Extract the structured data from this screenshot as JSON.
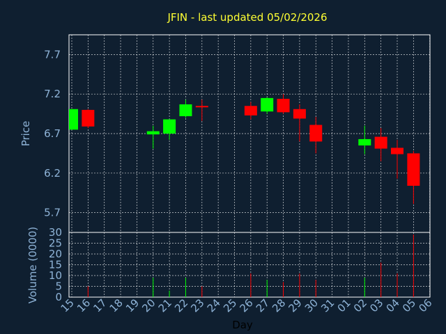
{
  "chart_data": {
    "type": "candlestick",
    "title": "JFIN - last updated 05/02/2026",
    "ylabel_price": "Price",
    "ylabel_volume": "Volume (0000)",
    "xlabel": "Day",
    "x_ticks": [
      "15",
      "16",
      "17",
      "18",
      "19",
      "20",
      "21",
      "22",
      "23",
      "24",
      "25",
      "26",
      "27",
      "28",
      "29",
      "30",
      "31",
      "01",
      "02",
      "03",
      "04",
      "05",
      "06"
    ],
    "price_ticks": [
      "5.7",
      "6.2",
      "6.7",
      "7.2",
      "7.7"
    ],
    "price_ylim": [
      5.45,
      7.95
    ],
    "volume_ticks": [
      "0",
      "5",
      "10",
      "15",
      "20",
      "25",
      "30"
    ],
    "volume_ylim": [
      0,
      30
    ],
    "up_color": "#00ff00",
    "down_color": "#ff0000",
    "grid": true,
    "candles": [
      {
        "x": "15",
        "open": 6.75,
        "close": 7.01,
        "high": 7.01,
        "low": 6.75,
        "volume": 0
      },
      {
        "x": "16",
        "open": 7.0,
        "close": 6.79,
        "high": 7.01,
        "low": 6.77,
        "volume": 5
      },
      {
        "x": "20",
        "open": 6.69,
        "close": 6.73,
        "high": 6.8,
        "low": 6.51,
        "volume": 9
      },
      {
        "x": "21",
        "open": 6.7,
        "close": 6.88,
        "high": 6.88,
        "low": 6.62,
        "volume": 3
      },
      {
        "x": "22",
        "open": 6.92,
        "close": 7.07,
        "high": 7.13,
        "low": 6.9,
        "volume": 9
      },
      {
        "x": "23",
        "open": 7.05,
        "close": 7.04,
        "high": 7.13,
        "low": 6.86,
        "volume": 5
      },
      {
        "x": "26",
        "open": 7.05,
        "close": 6.93,
        "high": 7.1,
        "low": 6.88,
        "volume": 11
      },
      {
        "x": "27",
        "open": 6.98,
        "close": 7.15,
        "high": 7.16,
        "low": 6.95,
        "volume": 8
      },
      {
        "x": "28",
        "open": 7.14,
        "close": 6.97,
        "high": 7.2,
        "low": 6.95,
        "volume": 7
      },
      {
        "x": "29",
        "open": 7.01,
        "close": 6.89,
        "high": 7.07,
        "low": 6.6,
        "volume": 11
      },
      {
        "x": "30",
        "open": 6.81,
        "close": 6.6,
        "high": 6.91,
        "low": 6.45,
        "volume": 8
      },
      {
        "x": "02",
        "open": 6.55,
        "close": 6.63,
        "high": 6.8,
        "low": 6.44,
        "volume": 9
      },
      {
        "x": "03",
        "open": 6.66,
        "close": 6.51,
        "high": 6.77,
        "low": 6.35,
        "volume": 16
      },
      {
        "x": "04",
        "open": 6.52,
        "close": 6.44,
        "high": 6.62,
        "low": 6.13,
        "volume": 11
      },
      {
        "x": "05",
        "open": 6.45,
        "close": 6.04,
        "high": 6.48,
        "low": 5.81,
        "volume": 29
      }
    ]
  }
}
